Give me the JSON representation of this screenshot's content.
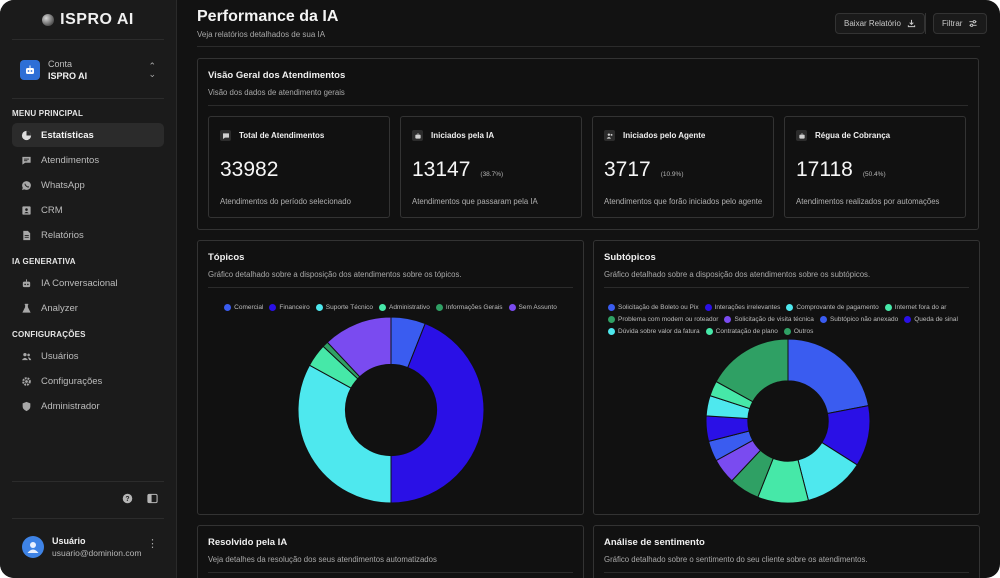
{
  "brand": {
    "name": "ISPRO AI"
  },
  "account": {
    "label": "Conta",
    "name": "ISPRO AI"
  },
  "menu": {
    "principal_title": "MENU PRINCIPAL",
    "principal": [
      {
        "label": "Estatísticas",
        "icon": "pie-chart-icon",
        "active": true
      },
      {
        "label": "Atendimentos",
        "icon": "message-icon"
      },
      {
        "label": "WhatsApp",
        "icon": "whatsapp-icon"
      },
      {
        "label": "CRM",
        "icon": "contact-card-icon"
      },
      {
        "label": "Relatórios",
        "icon": "document-icon"
      }
    ],
    "ia_title": "IA GENERATIVA",
    "ia": [
      {
        "label": "IA Conversacional",
        "icon": "robot-icon"
      },
      {
        "label": "Analyzer",
        "icon": "flask-icon"
      }
    ],
    "config_title": "CONFIGURAÇÕES",
    "config": [
      {
        "label": "Usuários",
        "icon": "users-icon"
      },
      {
        "label": "Configurações",
        "icon": "gear-icon"
      },
      {
        "label": "Administrador",
        "icon": "shield-icon"
      }
    ]
  },
  "user": {
    "name": "Usuário",
    "email": "usuario@dominion.com"
  },
  "header": {
    "title": "Performance da IA",
    "subtitle": "Veja relatórios detalhados de sua IA",
    "download_label": "Baixar Relatório",
    "filter_label": "Filtrar"
  },
  "overview": {
    "title": "Visão Geral dos Atendimentos",
    "subtitle": "Visão dos dados de atendimento gerais",
    "stats": [
      {
        "title": "Total de Atendimentos",
        "value": "33982",
        "percent": "",
        "desc": "Atendimentos do período selecionado",
        "icon": "message-icon"
      },
      {
        "title": "Iniciados pela IA",
        "value": "13147",
        "percent": "(38.7%)",
        "desc": "Atendimentos que passaram pela IA",
        "icon": "robot-icon"
      },
      {
        "title": "Iniciados pelo Agente",
        "value": "3717",
        "percent": "(10.9%)",
        "desc": "Atendimentos que forão iniciados pelo agente",
        "icon": "users-icon"
      },
      {
        "title": "Régua de Cobrança",
        "value": "17118",
        "percent": "(50.4%)",
        "desc": "Atendimentos realizados por automações",
        "icon": "robot-icon"
      }
    ]
  },
  "topics": {
    "title": "Tópicos",
    "subtitle": "Gráfico detalhado sobre a disposição dos atendimentos sobre os tópicos."
  },
  "subtopics": {
    "title": "Subtópicos",
    "subtitle": "Gráfico detalhado sobre a disposição dos atendimentos sobre os subtópicos."
  },
  "resolved": {
    "title": "Resolvido pela IA",
    "subtitle": "Veja detalhes da resolução dos seus atendimentos automatizados"
  },
  "sentiment": {
    "title": "Análise de sentimento",
    "subtitle": "Gráfico detalhado sobre o sentimento do seu cliente sobre os atendimentos."
  },
  "chart_data": [
    {
      "type": "pie",
      "title": "Tópicos",
      "categories": [
        "Comercial",
        "Financeiro",
        "Suporte Técnico",
        "Administrativo",
        "Informações Gerais",
        "Sem Assunto"
      ],
      "values": [
        6,
        44,
        33,
        4,
        1,
        12
      ],
      "colors": [
        "#3a5cf0",
        "#2a10e6",
        "#4ee8ee",
        "#46e8a8",
        "#2fa064",
        "#7a4bf0"
      ],
      "legend": "top"
    },
    {
      "type": "pie",
      "title": "Subtópicos",
      "categories": [
        "Solicitação de Boleto ou Pix",
        "Interações irrelevantes",
        "Comprovante de pagamento",
        "Internet fora do ar",
        "Problema com modem ou roteador",
        "Solicitação de visita técnica",
        "Subtópico não anexado",
        "Queda de sinal",
        "Dúvida sobre valor da fatura",
        "Contratação de plano",
        "Outros"
      ],
      "values": [
        22,
        12,
        12,
        10,
        6,
        5,
        4,
        5,
        4,
        3,
        17
      ],
      "colors": [
        "#3a5cf0",
        "#2a10e6",
        "#4ee8ee",
        "#46e8a8",
        "#2fa064",
        "#7a4bf0",
        "#3a5cf0",
        "#2a10e6",
        "#4ee8ee",
        "#46e8a8",
        "#2fa064"
      ],
      "legend": "top"
    }
  ]
}
